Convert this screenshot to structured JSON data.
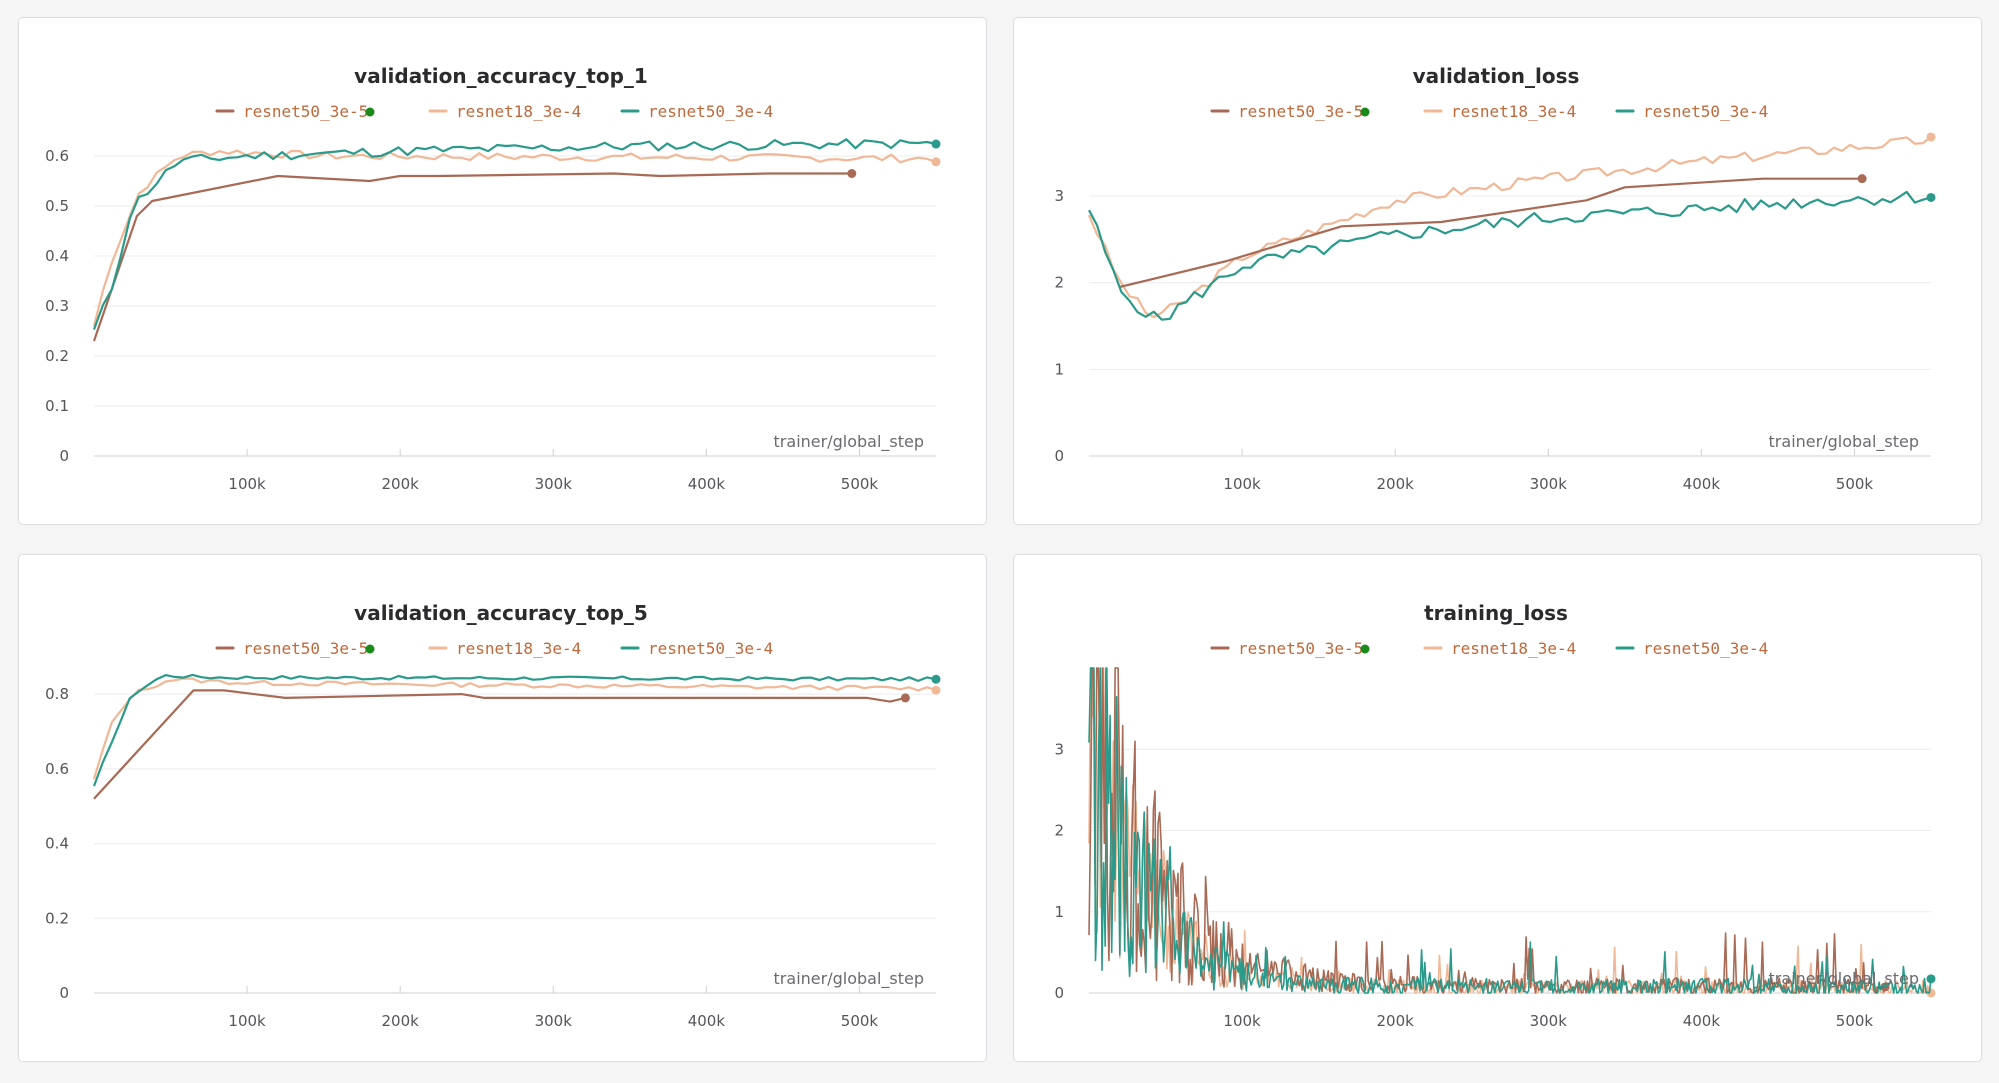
{
  "colors": {
    "resnet50_3e-5": "#a86a55",
    "resnet18_3e-4": "#f0b896",
    "resnet50_3e-4": "#2a9a8a",
    "status_dot": "#1a8a1a",
    "legend_text": "#c0683a"
  },
  "chart_data": [
    {
      "type": "line",
      "title": "validation_accuracy_top_1",
      "xlabel": "trainer/global_step",
      "xlim": [
        0,
        550000
      ],
      "ylim": [
        0,
        0.65
      ],
      "yticks": [
        0,
        0.1,
        0.2,
        0.3,
        0.4,
        0.5,
        0.6
      ],
      "ytick_labels": [
        "0",
        "0.1",
        "0.2",
        "0.3",
        "0.4",
        "0.5",
        "0.6"
      ],
      "xticks": [
        100000,
        200000,
        300000,
        400000,
        500000
      ],
      "xtick_labels": [
        "100k",
        "200k",
        "300k",
        "400k",
        "500k"
      ],
      "legend": [
        "resnet50_3e-5",
        "resnet18_3e-4",
        "resnet50_3e-4"
      ],
      "series": [
        {
          "name": "resnet50_3e-5",
          "gen": {
            "kind": "sparse",
            "points": [
              [
                0,
                0.23
              ],
              [
                28000,
                0.48
              ],
              [
                38000,
                0.51
              ],
              [
                120000,
                0.56
              ],
              [
                180000,
                0.55
              ],
              [
                200000,
                0.56
              ],
              [
                225000,
                0.56
              ],
              [
                340000,
                0.565
              ],
              [
                370000,
                0.56
              ],
              [
                440000,
                0.565
              ],
              [
                495000,
                0.565
              ]
            ],
            "noise": 0
          }
        },
        {
          "name": "resnet18_3e-4",
          "gen": {
            "kind": "dense",
            "n": 95,
            "x0": 0,
            "x1": 550000,
            "points": [
              [
                0,
                0.26
              ],
              [
                10000,
                0.38
              ],
              [
                30000,
                0.53
              ],
              [
                55000,
                0.6
              ],
              [
                80000,
                0.61
              ],
              [
                150000,
                0.6
              ],
              [
                550000,
                0.595
              ]
            ],
            "noise": 0.008,
            "seed": 7
          }
        },
        {
          "name": "resnet50_3e-4",
          "gen": {
            "kind": "dense",
            "n": 95,
            "x0": 0,
            "x1": 550000,
            "points": [
              [
                0,
                0.25
              ],
              [
                12000,
                0.34
              ],
              [
                25000,
                0.5
              ],
              [
                55000,
                0.59
              ],
              [
                100000,
                0.6
              ],
              [
                200000,
                0.61
              ],
              [
                350000,
                0.62
              ],
              [
                550000,
                0.625
              ]
            ],
            "noise": 0.01,
            "seed": 11
          }
        }
      ]
    },
    {
      "type": "line",
      "title": "validation_loss",
      "xlabel": "trainer/global_step",
      "xlim": [
        0,
        550000
      ],
      "ylim": [
        0,
        3.75
      ],
      "yticks": [
        0,
        1,
        2,
        3
      ],
      "ytick_labels": [
        "0",
        "1",
        "2",
        "3"
      ],
      "xticks": [
        100000,
        200000,
        300000,
        400000,
        500000
      ],
      "xtick_labels": [
        "100k",
        "200k",
        "300k",
        "400k",
        "500k"
      ],
      "legend": [
        "resnet50_3e-5",
        "resnet18_3e-4",
        "resnet50_3e-4"
      ],
      "series": [
        {
          "name": "resnet50_3e-5",
          "gen": {
            "kind": "sparse",
            "points": [
              [
                20000,
                1.95
              ],
              [
                90000,
                2.25
              ],
              [
                165000,
                2.65
              ],
              [
                230000,
                2.7
              ],
              [
                325000,
                2.95
              ],
              [
                350000,
                3.1
              ],
              [
                440000,
                3.2
              ],
              [
                470000,
                3.2
              ],
              [
                505000,
                3.2
              ]
            ],
            "noise": 0
          }
        },
        {
          "name": "resnet18_3e-4",
          "gen": {
            "kind": "dense",
            "n": 105,
            "x0": 0,
            "x1": 550000,
            "points": [
              [
                0,
                2.8
              ],
              [
                20000,
                2.0
              ],
              [
                40000,
                1.6
              ],
              [
                60000,
                1.75
              ],
              [
                100000,
                2.3
              ],
              [
                200000,
                2.95
              ],
              [
                300000,
                3.2
              ],
              [
                400000,
                3.4
              ],
              [
                550000,
                3.65
              ]
            ],
            "noise": 0.06,
            "seed": 3
          }
        },
        {
          "name": "resnet50_3e-4",
          "gen": {
            "kind": "dense",
            "n": 105,
            "x0": 0,
            "x1": 550000,
            "points": [
              [
                0,
                2.85
              ],
              [
                20000,
                1.9
              ],
              [
                45000,
                1.55
              ],
              [
                70000,
                1.85
              ],
              [
                100000,
                2.2
              ],
              [
                200000,
                2.55
              ],
              [
                300000,
                2.75
              ],
              [
                400000,
                2.85
              ],
              [
                480000,
                2.95
              ],
              [
                550000,
                3.0
              ]
            ],
            "noise": 0.08,
            "seed": 5
          }
        }
      ]
    },
    {
      "type": "line",
      "title": "validation_accuracy_top_5",
      "xlabel": "trainer/global_step",
      "xlim": [
        0,
        550000
      ],
      "ylim": [
        0,
        0.87
      ],
      "yticks": [
        0,
        0.2,
        0.4,
        0.6,
        0.8
      ],
      "ytick_labels": [
        "0",
        "0.2",
        "0.4",
        "0.6",
        "0.8"
      ],
      "xticks": [
        100000,
        200000,
        300000,
        400000,
        500000
      ],
      "xtick_labels": [
        "100k",
        "200k",
        "300k",
        "400k",
        "500k"
      ],
      "legend": [
        "resnet50_3e-5",
        "resnet18_3e-4",
        "resnet50_3e-4"
      ],
      "series": [
        {
          "name": "resnet50_3e-5",
          "gen": {
            "kind": "sparse",
            "points": [
              [
                0,
                0.52
              ],
              [
                65000,
                0.81
              ],
              [
                85000,
                0.81
              ],
              [
                125000,
                0.79
              ],
              [
                240000,
                0.8
              ],
              [
                255000,
                0.79
              ],
              [
                440000,
                0.79
              ],
              [
                505000,
                0.79
              ],
              [
                520000,
                0.78
              ],
              [
                530000,
                0.79
              ]
            ],
            "noise": 0
          }
        },
        {
          "name": "resnet18_3e-4",
          "gen": {
            "kind": "dense",
            "n": 95,
            "x0": 0,
            "x1": 550000,
            "points": [
              [
                0,
                0.57
              ],
              [
                10000,
                0.71
              ],
              [
                25000,
                0.8
              ],
              [
                50000,
                0.84
              ],
              [
                100000,
                0.83
              ],
              [
                550000,
                0.815
              ]
            ],
            "noise": 0.006,
            "seed": 13
          }
        },
        {
          "name": "resnet50_3e-4",
          "gen": {
            "kind": "dense",
            "n": 95,
            "x0": 0,
            "x1": 550000,
            "points": [
              [
                0,
                0.55
              ],
              [
                10000,
                0.66
              ],
              [
                25000,
                0.8
              ],
              [
                45000,
                0.85
              ],
              [
                80000,
                0.845
              ],
              [
                550000,
                0.84
              ]
            ],
            "noise": 0.005,
            "seed": 17
          }
        }
      ]
    },
    {
      "type": "line",
      "title": "training_loss",
      "xlabel": "trainer/global_step",
      "xlim": [
        0,
        550000
      ],
      "ylim": [
        0,
        4.0
      ],
      "yticks": [
        0,
        1,
        2,
        3
      ],
      "ytick_labels": [
        "0",
        "1",
        "2",
        "3"
      ],
      "xticks": [
        100000,
        200000,
        300000,
        400000,
        500000
      ],
      "xtick_labels": [
        "100k",
        "200k",
        "300k",
        "400k",
        "500k"
      ],
      "legend": [
        "resnet50_3e-5",
        "resnet18_3e-4",
        "resnet50_3e-4"
      ],
      "series": [
        {
          "name": "resnet50_3e-5",
          "gen": {
            "kind": "noisy_decay",
            "n": 520,
            "x0": 0,
            "x1": 520000,
            "start": 3.8,
            "tau": 40000,
            "floor": 0.08,
            "amp": 0.9,
            "spike": 0.6,
            "seed": 21
          }
        },
        {
          "name": "resnet18_3e-4",
          "gen": {
            "kind": "noisy_decay",
            "n": 520,
            "x0": 0,
            "x1": 550000,
            "start": 3.5,
            "tau": 35000,
            "floor": 0.06,
            "amp": 0.8,
            "spike": 0.5,
            "seed": 23
          }
        },
        {
          "name": "resnet50_3e-4",
          "gen": {
            "kind": "noisy_decay",
            "n": 520,
            "x0": 0,
            "x1": 550000,
            "start": 3.6,
            "tau": 32000,
            "floor": 0.07,
            "amp": 0.9,
            "spike": 0.55,
            "seed": 29
          }
        }
      ]
    }
  ]
}
